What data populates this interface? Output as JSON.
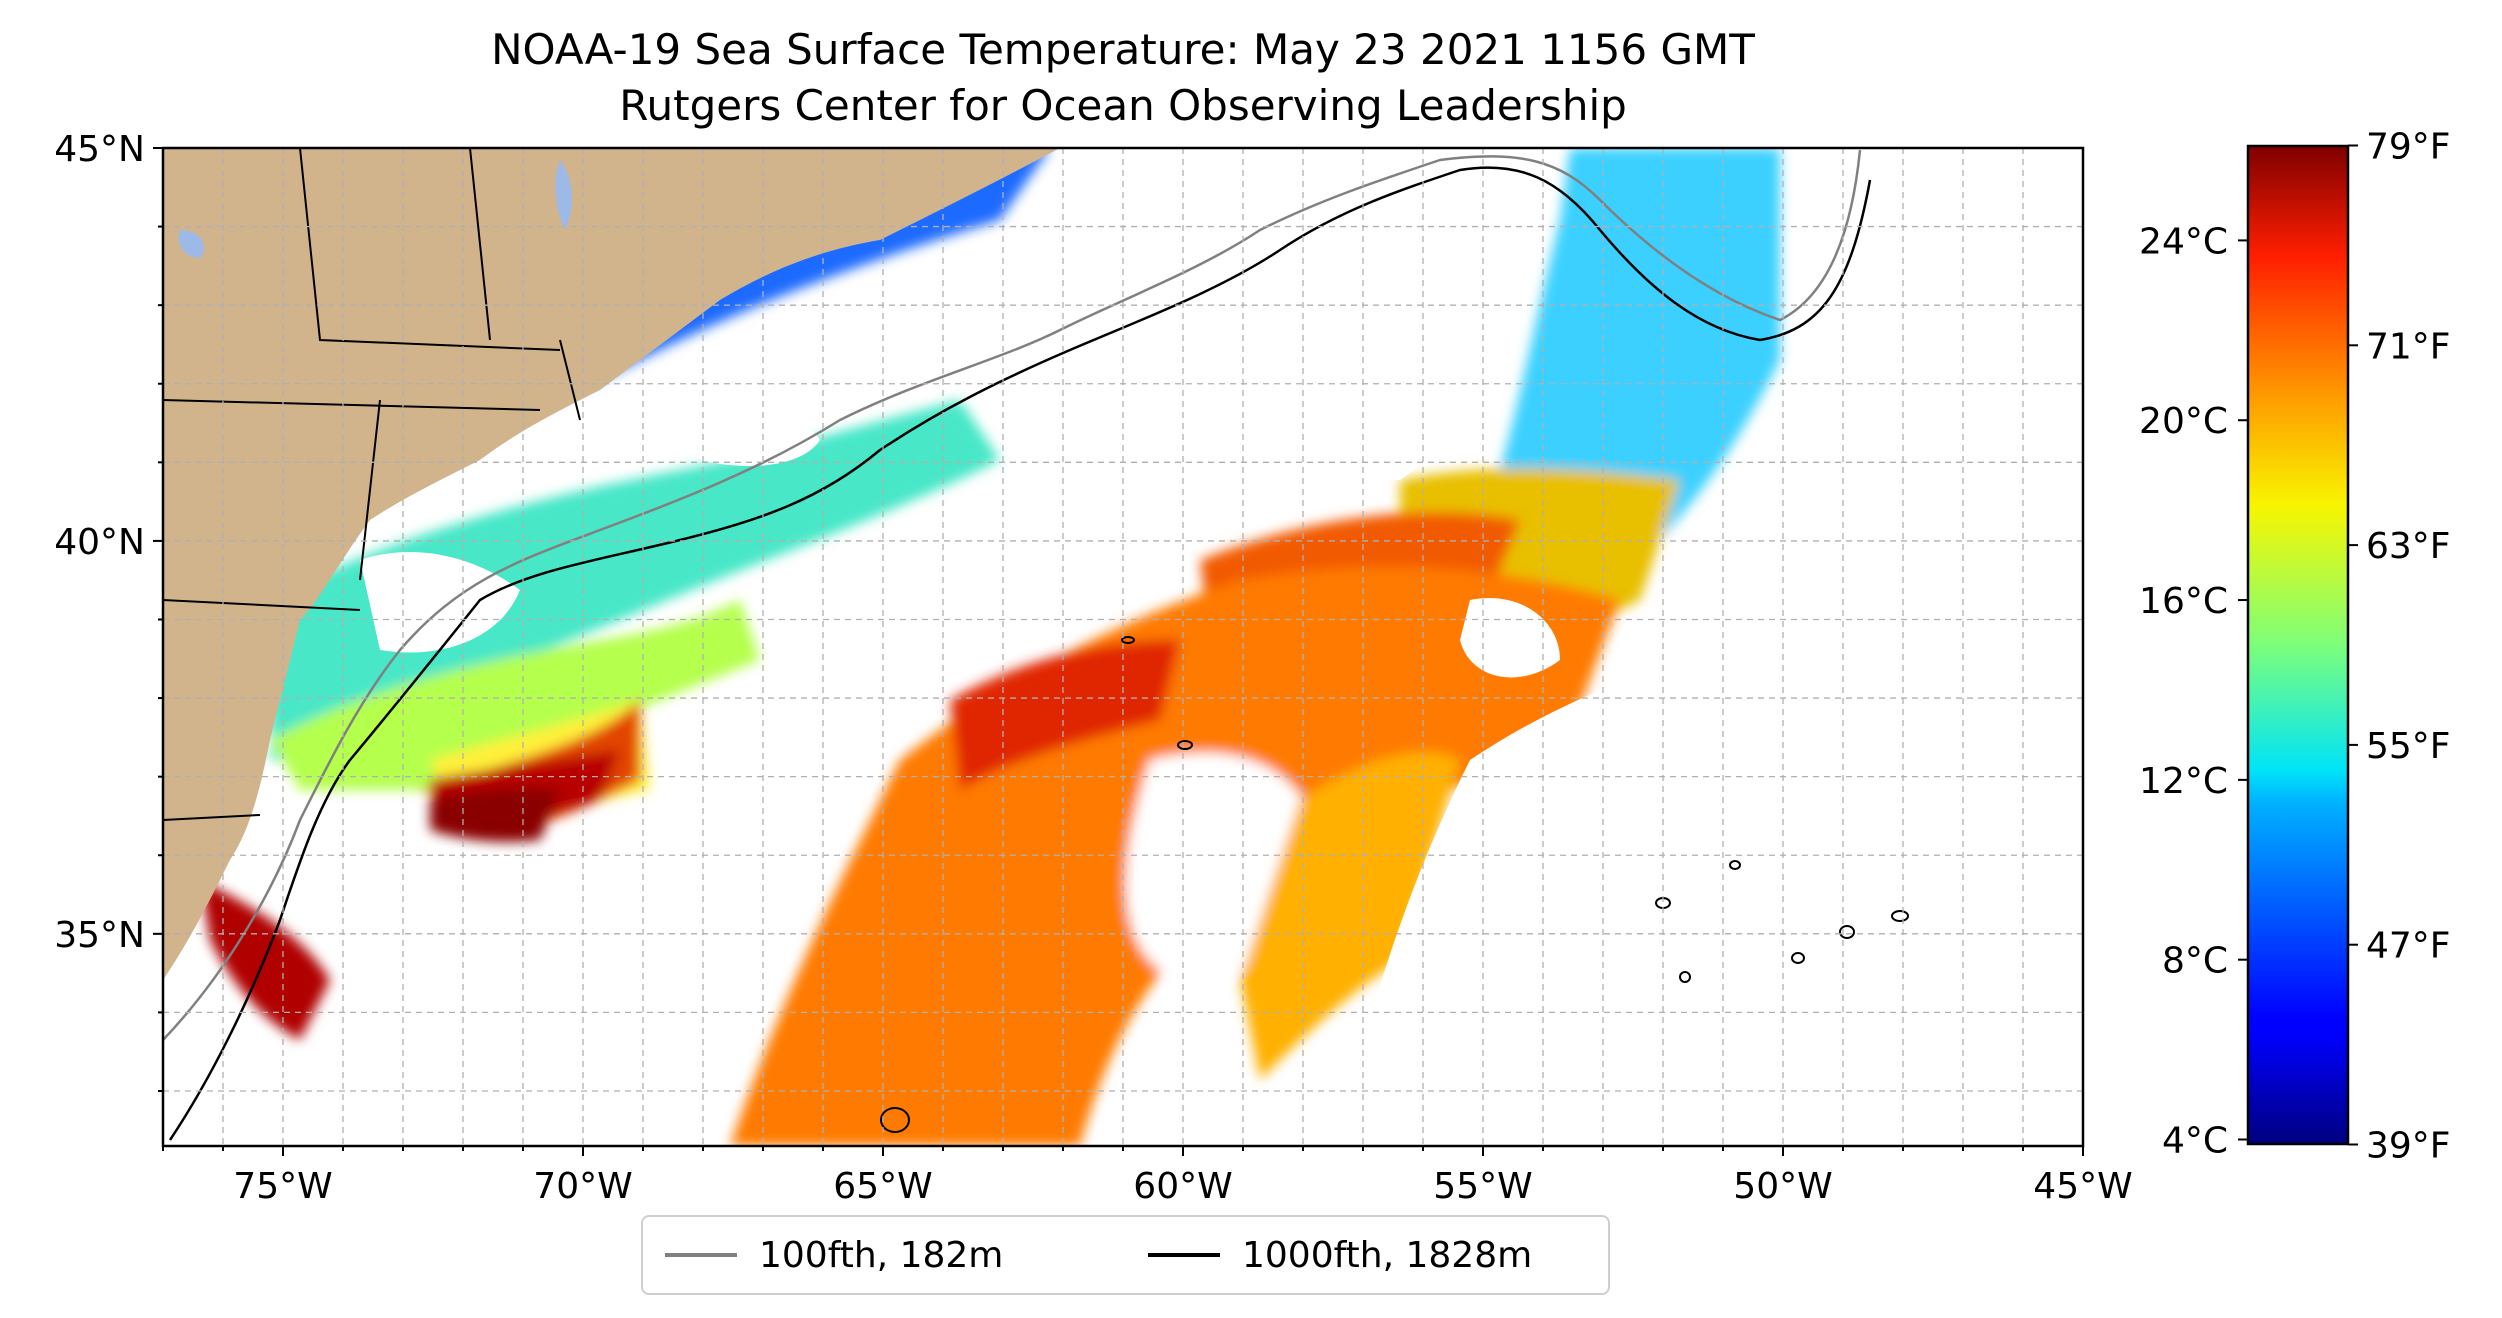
{
  "title": {
    "line1": "NOAA-19 Sea Surface Temperature: May 23 2021 1156 GMT",
    "line2": "Rutgers Center for Ocean Observing Leadership"
  },
  "map": {
    "extent": {
      "lon_min": -77,
      "lon_max": -45,
      "lat_min": 32.3,
      "lat_max": 45
    },
    "lon_ticks": [
      {
        "value": -75,
        "label": "75°W"
      },
      {
        "value": -70,
        "label": "70°W"
      },
      {
        "value": -65,
        "label": "65°W"
      },
      {
        "value": -60,
        "label": "60°W"
      },
      {
        "value": -55,
        "label": "55°W"
      },
      {
        "value": -50,
        "label": "50°W"
      },
      {
        "value": -45,
        "label": "45°W"
      }
    ],
    "lat_ticks": [
      {
        "value": 45,
        "label": "45°N"
      },
      {
        "value": 40,
        "label": "40°N"
      },
      {
        "value": 35,
        "label": "35°N"
      }
    ],
    "gridlines": true,
    "land_color": "#d2b48c",
    "grid_color": "#b0b0b0"
  },
  "legend": {
    "items": [
      {
        "label": "100fth, 182m",
        "color": "#808080"
      },
      {
        "label": "1000fth, 1828m",
        "color": "#000000"
      }
    ]
  },
  "colorbar": {
    "colormap": "jet",
    "celsius_range": [
      3.9,
      26.1
    ],
    "celsius_ticks": [
      {
        "value": 4,
        "label": "4°C"
      },
      {
        "value": 8,
        "label": "8°C"
      },
      {
        "value": 12,
        "label": "12°C"
      },
      {
        "value": 16,
        "label": "16°C"
      },
      {
        "value": 20,
        "label": "20°C"
      },
      {
        "value": 24,
        "label": "24°C"
      }
    ],
    "fahrenheit_ticks": [
      {
        "value": 39,
        "label": "39°F"
      },
      {
        "value": 47,
        "label": "47°F"
      },
      {
        "value": 55,
        "label": "55°F"
      },
      {
        "value": 63,
        "label": "63°F"
      },
      {
        "value": 71,
        "label": "71°F"
      },
      {
        "value": 79,
        "label": "79°F"
      }
    ]
  }
}
